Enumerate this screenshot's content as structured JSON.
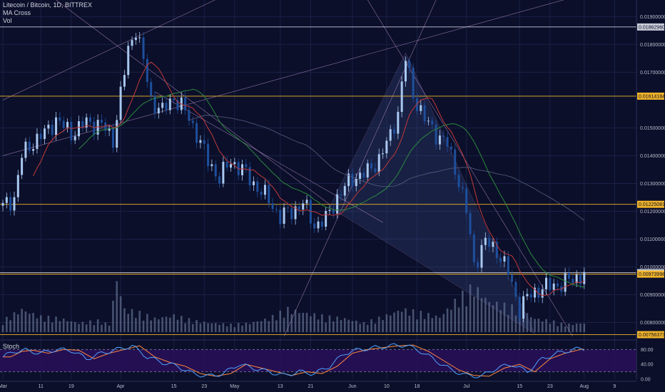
{
  "header": {
    "symbol": "Litecoin / Bitcoin, 1D, BITTREX",
    "ma_label": "MA Cross",
    "vol_label": "Vol",
    "stoch_label": "Stoch"
  },
  "colors": {
    "background": "#0b0f2a",
    "stoch_band": "#2a0f5a",
    "candle_up": "#a9c8f0",
    "candle_down": "#1e4f9c",
    "volume": "#6e7fa0",
    "hline_orange": "#f0b429",
    "hline_white": "#c8ccd8",
    "ma_fast": "#c23a3a",
    "ma_slow": "#2d8a3e",
    "stoch_k": "#4fa3ff",
    "stoch_d": "#ff8a3d",
    "trend": "#c89ad6"
  },
  "price_axis": {
    "ticks": [
      "0.01900000",
      "0.01800000",
      "0.01700000",
      "0.01500000",
      "0.01400000",
      "0.01300000",
      "0.01200000",
      "0.01100000",
      "0.01000000",
      "0.00900000",
      "0.00800000"
    ]
  },
  "stoch_axis": {
    "ticks": [
      "80.00",
      "40.00",
      "0.00"
    ]
  },
  "time_axis": {
    "ticks": [
      {
        "label": "Mar",
        "day": 0
      },
      {
        "label": "11",
        "day": 10
      },
      {
        "label": "19",
        "day": 18
      },
      {
        "label": "Apr",
        "day": 31
      },
      {
        "label": "15",
        "day": 45
      },
      {
        "label": "23",
        "day": 53
      },
      {
        "label": "May",
        "day": 61
      },
      {
        "label": "13",
        "day": 73
      },
      {
        "label": "21",
        "day": 81
      },
      {
        "label": "Jun",
        "day": 92
      },
      {
        "label": "10",
        "day": 101
      },
      {
        "label": "18",
        "day": 109
      },
      {
        "label": "Jul",
        "day": 122
      },
      {
        "label": "15",
        "day": 136
      },
      {
        "label": "23",
        "day": 144
      },
      {
        "label": "Aug",
        "day": 153
      },
      {
        "label": "9",
        "day": 161
      }
    ]
  },
  "price_tags": [
    {
      "value": "0.01862960",
      "level": 0.0186296,
      "color": "#c8ccd8",
      "text_color": "#0b0f2a"
    },
    {
      "value": "0.01614184",
      "level": 0.01614184,
      "color": "#f0b429",
      "text_color": "#0b0f2a"
    },
    {
      "value": "0.01225081",
      "level": 0.01225081,
      "color": "#f0b429",
      "text_color": "#0b0f2a"
    },
    {
      "value": "0.00979350",
      "level": 0.0097935,
      "color": "#c8ccd8",
      "text_color": "#0b0f2a"
    },
    {
      "value": "0.00973998",
      "level": 0.00973998,
      "color": "#f0b429",
      "text_color": "#0b0f2a"
    },
    {
      "value": "0.00756373",
      "level": 0.00756373,
      "color": "#f0b429",
      "text_color": "#0b0f2a"
    }
  ],
  "chart_data": {
    "type": "candlestick",
    "title": "Litecoin / Bitcoin, 1D, BITTREX",
    "x_unit": "days since Mar 1",
    "ylim": [
      0.0075,
      0.0196
    ],
    "horizontal_levels": [
      0.0186296,
      0.01614184,
      0.01225081,
      0.0097935,
      0.00756373
    ],
    "close_anchors": [
      [
        0,
        0.01215
      ],
      [
        3,
        0.0125
      ],
      [
        5,
        0.014
      ],
      [
        8,
        0.0145
      ],
      [
        11,
        0.0148
      ],
      [
        14,
        0.0153
      ],
      [
        18,
        0.0148
      ],
      [
        22,
        0.0152
      ],
      [
        26,
        0.0151
      ],
      [
        29,
        0.0146
      ],
      [
        31,
        0.0162
      ],
      [
        33,
        0.0178
      ],
      [
        35,
        0.0186
      ],
      [
        37,
        0.0174
      ],
      [
        39,
        0.016
      ],
      [
        42,
        0.0156
      ],
      [
        45,
        0.0161
      ],
      [
        48,
        0.0156
      ],
      [
        51,
        0.0148
      ],
      [
        54,
        0.0138
      ],
      [
        57,
        0.0132
      ],
      [
        60,
        0.0138
      ],
      [
        63,
        0.0135
      ],
      [
        66,
        0.013
      ],
      [
        70,
        0.0124
      ],
      [
        73,
        0.0118
      ],
      [
        76,
        0.012
      ],
      [
        79,
        0.0123
      ],
      [
        82,
        0.0115
      ],
      [
        85,
        0.0117
      ],
      [
        88,
        0.0125
      ],
      [
        92,
        0.0132
      ],
      [
        96,
        0.0134
      ],
      [
        99,
        0.0139
      ],
      [
        102,
        0.0147
      ],
      [
        104,
        0.0156
      ],
      [
        106,
        0.0175
      ],
      [
        108,
        0.0162
      ],
      [
        111,
        0.0153
      ],
      [
        114,
        0.0148
      ],
      [
        117,
        0.0144
      ],
      [
        120,
        0.0131
      ],
      [
        122,
        0.012
      ],
      [
        124,
        0.0101
      ],
      [
        127,
        0.0109
      ],
      [
        130,
        0.0106
      ],
      [
        133,
        0.0098
      ],
      [
        136,
        0.0085
      ],
      [
        138,
        0.0089
      ],
      [
        141,
        0.0092
      ],
      [
        144,
        0.0093
      ],
      [
        147,
        0.0094
      ],
      [
        150,
        0.00955
      ],
      [
        153,
        0.00975
      ]
    ],
    "volume_anchors": [
      [
        0,
        0.15
      ],
      [
        5,
        0.3
      ],
      [
        10,
        0.2
      ],
      [
        15,
        0.18
      ],
      [
        20,
        0.12
      ],
      [
        25,
        0.15
      ],
      [
        28,
        0.1
      ],
      [
        30,
        0.7
      ],
      [
        32,
        0.3
      ],
      [
        36,
        0.25
      ],
      [
        40,
        0.18
      ],
      [
        45,
        0.22
      ],
      [
        50,
        0.15
      ],
      [
        55,
        0.12
      ],
      [
        60,
        0.1
      ],
      [
        65,
        0.12
      ],
      [
        70,
        0.18
      ],
      [
        75,
        0.3
      ],
      [
        80,
        0.25
      ],
      [
        85,
        0.2
      ],
      [
        90,
        0.18
      ],
      [
        95,
        0.12
      ],
      [
        100,
        0.2
      ],
      [
        105,
        0.3
      ],
      [
        110,
        0.25
      ],
      [
        115,
        0.2
      ],
      [
        120,
        0.45
      ],
      [
        124,
        0.6
      ],
      [
        128,
        0.4
      ],
      [
        132,
        0.35
      ],
      [
        136,
        0.3
      ],
      [
        140,
        0.18
      ],
      [
        144,
        0.15
      ],
      [
        148,
        0.1
      ],
      [
        153,
        0.12
      ]
    ],
    "stoch_anchors": [
      [
        0,
        60
      ],
      [
        3,
        75
      ],
      [
        6,
        78
      ],
      [
        10,
        70
      ],
      [
        14,
        80
      ],
      [
        18,
        78
      ],
      [
        22,
        55
      ],
      [
        26,
        70
      ],
      [
        30,
        80
      ],
      [
        34,
        90
      ],
      [
        38,
        60
      ],
      [
        42,
        45
      ],
      [
        46,
        35
      ],
      [
        50,
        15
      ],
      [
        54,
        8
      ],
      [
        58,
        15
      ],
      [
        62,
        40
      ],
      [
        66,
        30
      ],
      [
        70,
        20
      ],
      [
        74,
        10
      ],
      [
        78,
        20
      ],
      [
        82,
        15
      ],
      [
        86,
        35
      ],
      [
        90,
        70
      ],
      [
        94,
        80
      ],
      [
        98,
        85
      ],
      [
        102,
        90
      ],
      [
        106,
        92
      ],
      [
        110,
        75
      ],
      [
        114,
        50
      ],
      [
        118,
        25
      ],
      [
        122,
        10
      ],
      [
        126,
        8
      ],
      [
        130,
        30
      ],
      [
        134,
        40
      ],
      [
        138,
        20
      ],
      [
        142,
        55
      ],
      [
        146,
        70
      ],
      [
        150,
        80
      ],
      [
        153,
        82
      ]
    ]
  }
}
